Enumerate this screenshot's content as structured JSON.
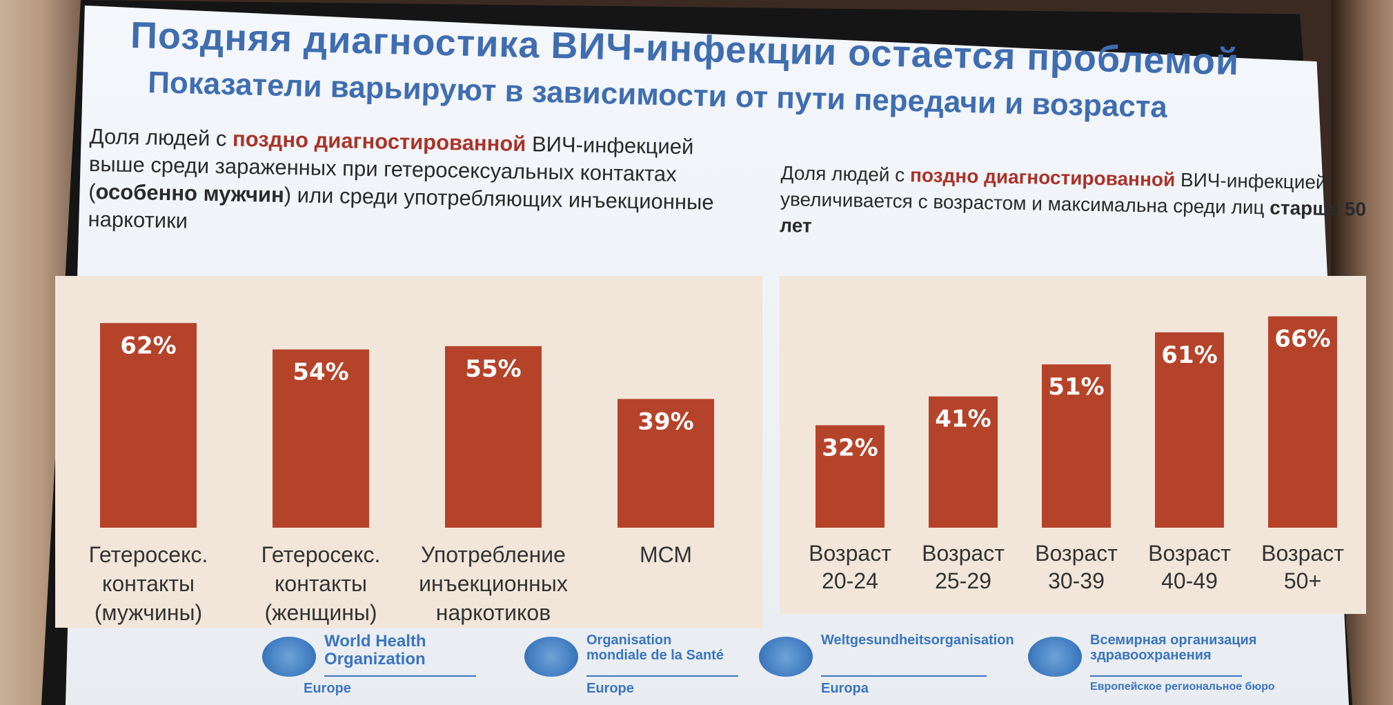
{
  "title": "Поздняя диагностика ВИЧ-инфекции остается проблемой",
  "subtitle": "Показатели варьируют в зависимости от пути передачи и возраста",
  "left_desc": {
    "pre": "Доля людей с ",
    "red": "поздно диагностированной",
    "mid": " ВИЧ-инфекцией выше среди зараженных при гетеросексуальных контактах (",
    "bold": "особенно мужчин",
    "post": ") или среди употребляющих инъекционные наркотики"
  },
  "right_desc": {
    "pre": "Доля людей с ",
    "red": "поздно диагностированной",
    "mid": " ВИЧ-инфекцией увеличивается с возрастом и максимальна среди лиц ",
    "bold": "старше 50 лет"
  },
  "chart_data": [
    {
      "type": "bar",
      "title": "",
      "categories": [
        [
          "Гетеросекс.",
          "контакты",
          "(мужчины)"
        ],
        [
          "Гетеросекс.",
          "контакты",
          "(женщины)"
        ],
        [
          "Употребление",
          "инъекционных",
          "наркотиков"
        ],
        [
          "МСМ"
        ]
      ],
      "values": [
        62,
        54,
        55,
        39
      ],
      "value_labels": [
        "62%",
        "54%",
        "55%",
        "39%"
      ],
      "ylim": [
        0,
        70
      ],
      "bar_color": "#b5432a",
      "grid": false
    },
    {
      "type": "bar",
      "title": "",
      "categories": [
        [
          "Возраст",
          "20-24"
        ],
        [
          "Возраст",
          "25-29"
        ],
        [
          "Возраст",
          "30-39"
        ],
        [
          "Возраст",
          "40-49"
        ],
        [
          "Возраст",
          "50+"
        ]
      ],
      "values": [
        32,
        41,
        51,
        61,
        66
      ],
      "value_labels": [
        "32%",
        "41%",
        "51%",
        "61%",
        "66%"
      ],
      "ylim": [
        0,
        70
      ],
      "bar_color": "#b5432a",
      "grid": false
    }
  ],
  "footer": {
    "who_en": [
      "World Health",
      "Organization"
    ],
    "who_en_sub": "Europe",
    "who_fr": [
      "Organisation",
      "mondiale de la Santé"
    ],
    "who_fr_sub": "Europe",
    "who_de": [
      "Weltgesundheitsorganisation"
    ],
    "who_de_sub": "Europa",
    "who_ru": [
      "Всемирная организация",
      "здравоохранения"
    ],
    "who_ru_sub": "Европейское региональное бюро"
  }
}
